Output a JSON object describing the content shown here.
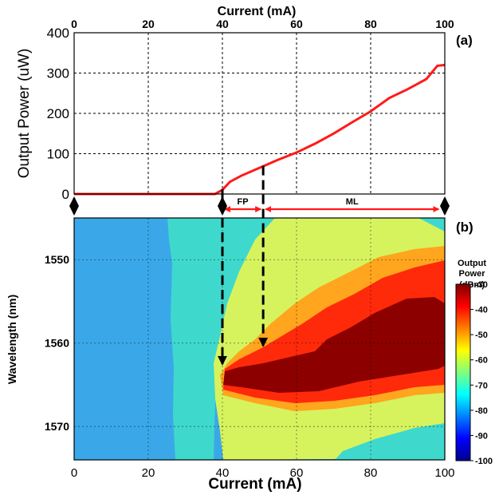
{
  "chart_data": [
    {
      "panel_label": "(a)",
      "type": "line",
      "xlabel": "Current (mA)",
      "ylabel": "Output Power (uW)",
      "xlim": [
        0,
        100
      ],
      "ylim": [
        0,
        400
      ],
      "xticks": [
        0,
        20,
        40,
        60,
        80,
        100
      ],
      "yticks": [
        0,
        100,
        200,
        300,
        400
      ],
      "x_axis_position": "top",
      "grid": true,
      "series": [
        {
          "color": "#ff1a1a",
          "x": [
            0,
            10,
            20,
            30,
            38,
            40,
            42,
            45,
            50,
            55,
            60,
            65,
            70,
            75,
            80,
            85,
            90,
            95,
            98,
            100
          ],
          "y": [
            0,
            0,
            0,
            0,
            0,
            10,
            30,
            45,
            65,
            85,
            103,
            125,
            150,
            178,
            205,
            238,
            260,
            285,
            318,
            320
          ]
        }
      ],
      "annotations": [
        {
          "text": "FP",
          "from_x": 40,
          "to_x": 51
        },
        {
          "text": "ML",
          "from_x": 51,
          "to_x": 99
        }
      ]
    },
    {
      "panel_label": "(b)",
      "type": "heatmap",
      "xlabel": "Current (mA)",
      "ylabel": "Wavelength (nm)",
      "xlim": [
        0,
        100
      ],
      "ylim": [
        1545,
        1574
      ],
      "y_reversed": true,
      "xticks": [
        0,
        20,
        40,
        60,
        80,
        100
      ],
      "yticks": [
        1550,
        1560,
        1570
      ],
      "grid": true,
      "colorbar": {
        "title": [
          "Output",
          "Power",
          "(dBm)"
        ],
        "ticks": [
          -30,
          -40,
          -50,
          -60,
          -70,
          -80,
          -90,
          -100
        ],
        "range": [
          -100,
          -30
        ]
      },
      "arrows": [
        {
          "x": 40,
          "from": "panel-a",
          "to_wavelength": 1562.5
        },
        {
          "x": 51,
          "from": "panel-a",
          "to_wavelength": 1560.3
        }
      ],
      "colors": {
        "level_-75": "#3aa8e8",
        "level_-67": "#3ed9cc",
        "level_-58": "#d6f35e",
        "level_-48": "#ffa51e",
        "level_-40": "#ff2a0a",
        "level_-32": "#8c0000"
      }
    }
  ]
}
